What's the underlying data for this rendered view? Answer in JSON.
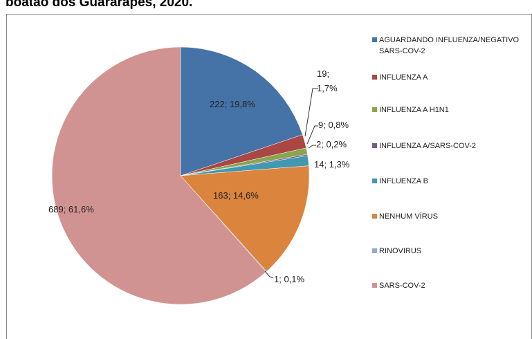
{
  "chart_data": {
    "type": "pie",
    "title": "boatão dos Guararapes, 2020.",
    "categories": [
      "AGUARDANDO INFLUENZA/NEGATIVO SARS-COV-2",
      "INFLUENZA A",
      "INFLUENZA A H1N1",
      "INFLUENZA A/SARS-COV-2",
      "INFLUENZA B",
      "NENHUM VÍRUS",
      "RINOVIRUS",
      "SARS-COV-2"
    ],
    "values": [
      222,
      19,
      9,
      2,
      14,
      163,
      1,
      689
    ],
    "value_labels": [
      "222; 19,8%",
      "19; 1,7%",
      "9; 0,8%",
      "2; 0,2%",
      "14; 1,3%",
      "163; 14,6%",
      "1; 0,1%",
      "689; 61,6%"
    ],
    "colors": [
      "#4572a7",
      "#aa4643",
      "#89a54e",
      "#71588f",
      "#4198af",
      "#db843d",
      "#93a9cf",
      "#d19392"
    ],
    "legend": "right"
  }
}
